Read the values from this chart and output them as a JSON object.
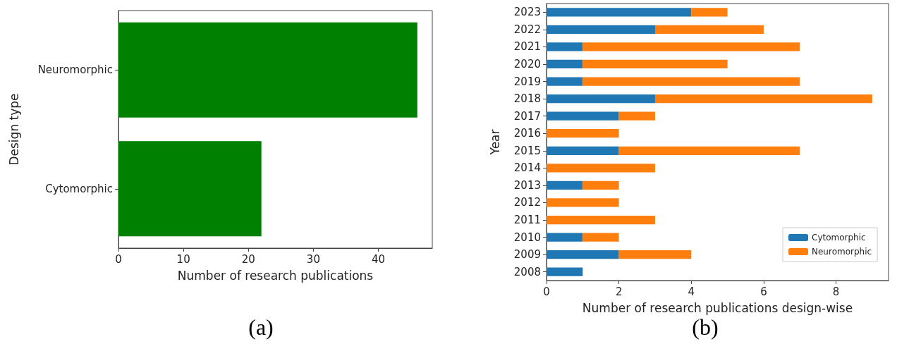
{
  "chart_data": [
    {
      "type": "bar",
      "orientation": "horizontal",
      "categories": [
        "Neuromorphic",
        "Cytomorphic"
      ],
      "values": [
        46,
        22
      ],
      "color": "#008000",
      "xlabel": "Number of research publications",
      "ylabel": "Design type",
      "xlim": [
        0,
        48.3
      ],
      "xticks": [
        0,
        10,
        20,
        30,
        40
      ],
      "grid": false,
      "legend": false,
      "annotations": [
        "(a)"
      ]
    },
    {
      "type": "bar",
      "orientation": "horizontal",
      "stacked": true,
      "categories": [
        "2023",
        "2022",
        "2021",
        "2020",
        "2019",
        "2018",
        "2017",
        "2016",
        "2015",
        "2014",
        "2013",
        "2012",
        "2011",
        "2010",
        "2009",
        "2008"
      ],
      "series": [
        {
          "name": "Cytomorphic",
          "color": "#1f77b4",
          "values": [
            4,
            3,
            1,
            1,
            1,
            3,
            2,
            0,
            2,
            0,
            1,
            0,
            0,
            1,
            2,
            1
          ]
        },
        {
          "name": "Neuromorphic",
          "color": "#ff7f0e",
          "values": [
            1,
            3,
            6,
            4,
            6,
            6,
            1,
            2,
            5,
            3,
            1,
            2,
            3,
            1,
            2,
            0
          ]
        }
      ],
      "xlabel": "Number of research publications design-wise",
      "ylabel": "Year",
      "xlim": [
        0,
        9.45
      ],
      "xticks": [
        0,
        2,
        4,
        6,
        8
      ],
      "grid": false,
      "legend": "bottom right",
      "annotations": [
        "(b)"
      ]
    }
  ]
}
